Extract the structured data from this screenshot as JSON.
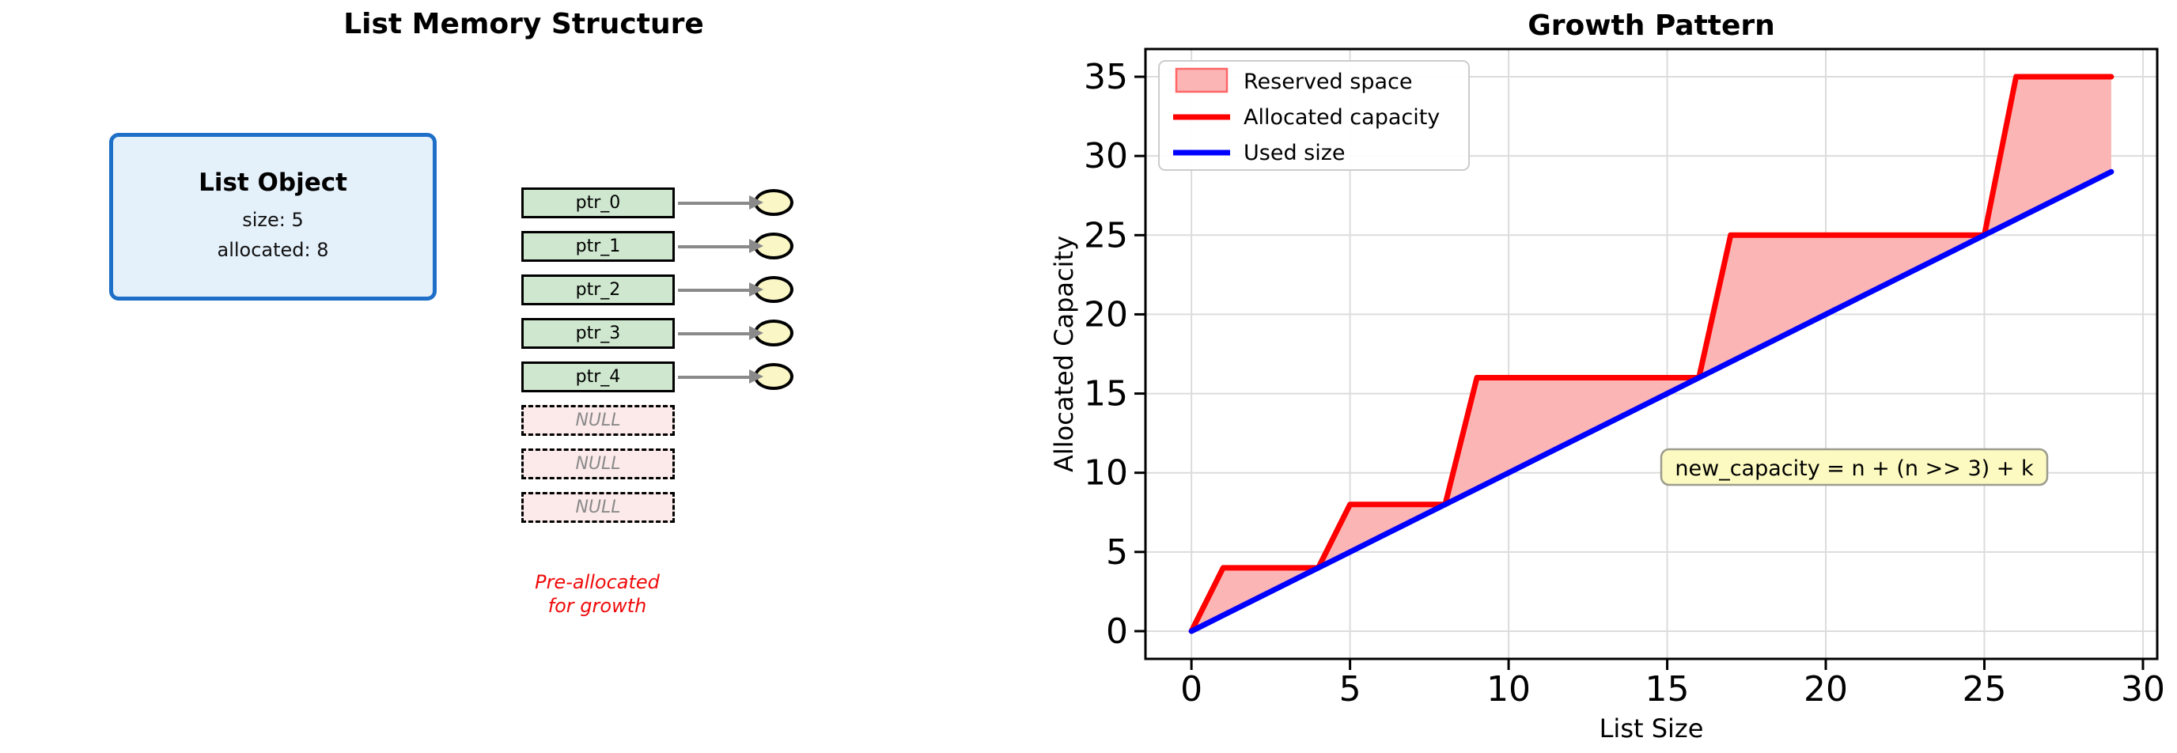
{
  "left_panel": {
    "title": "List Memory Structure",
    "list_object": {
      "title": "List Object",
      "size_line": "size: 5",
      "allocated_line": "allocated: 8"
    },
    "used_slots": [
      "ptr_0",
      "ptr_1",
      "ptr_2",
      "ptr_3",
      "ptr_4"
    ],
    "reserved_slots": [
      "NULL",
      "NULL",
      "NULL"
    ],
    "note": "Pre-allocated\nfor growth",
    "colors": {
      "list_object_fill": "#e4f0fa",
      "list_object_border": "#1e6fc8",
      "used_slot_fill": "#cfe7cf",
      "reserved_slot_fill": "#fceaea",
      "ellipse_fill": "#faf6c5",
      "connector": "#8a8a8a",
      "note_text": "#f00a0a"
    }
  },
  "chart_data": {
    "type": "area",
    "title": "Growth Pattern",
    "xlabel": "List Size",
    "ylabel": "Allocated Capacity",
    "x": [
      0,
      1,
      2,
      3,
      4,
      5,
      6,
      7,
      8,
      9,
      10,
      11,
      12,
      13,
      14,
      15,
      16,
      17,
      18,
      19,
      20,
      21,
      22,
      23,
      24,
      25,
      26,
      27,
      28,
      29
    ],
    "series": [
      {
        "name": "Allocated capacity",
        "color": "#ff0000",
        "values": [
          0,
          4,
          4,
          4,
          4,
          8,
          8,
          8,
          8,
          16,
          16,
          16,
          16,
          16,
          16,
          16,
          16,
          25,
          25,
          25,
          25,
          25,
          25,
          25,
          25,
          25,
          35,
          35,
          35,
          35
        ]
      },
      {
        "name": "Used size",
        "color": "#0000ff",
        "values": [
          0,
          1,
          2,
          3,
          4,
          5,
          6,
          7,
          8,
          9,
          10,
          11,
          12,
          13,
          14,
          15,
          16,
          17,
          18,
          19,
          20,
          21,
          22,
          23,
          24,
          25,
          26,
          27,
          28,
          29
        ]
      }
    ],
    "fill_between": {
      "name": "Reserved space",
      "color": "#fbb5b5",
      "edge": "#ff0000"
    },
    "legend": {
      "position": "upper left",
      "entries": [
        {
          "label": "Reserved space",
          "swatch": "patch",
          "fill": "#fbb5b5",
          "edge": "#f66"
        },
        {
          "label": "Allocated capacity",
          "swatch": "line",
          "color": "#ff0000"
        },
        {
          "label": "Used size",
          "swatch": "line",
          "color": "#0000ff"
        }
      ]
    },
    "xticks": [
      0,
      5,
      10,
      15,
      20,
      25,
      30
    ],
    "yticks": [
      0,
      5,
      10,
      15,
      20,
      25,
      30,
      35
    ],
    "xlim": [
      -1.45,
      30.45
    ],
    "ylim": [
      -1.75,
      36.75
    ],
    "grid": true,
    "grid_color": "#dcdcdc",
    "annotation": {
      "text": "new_capacity = n + (n >> 3) + k",
      "fill": "#fcfac1",
      "border": "#9c9c8e"
    }
  }
}
